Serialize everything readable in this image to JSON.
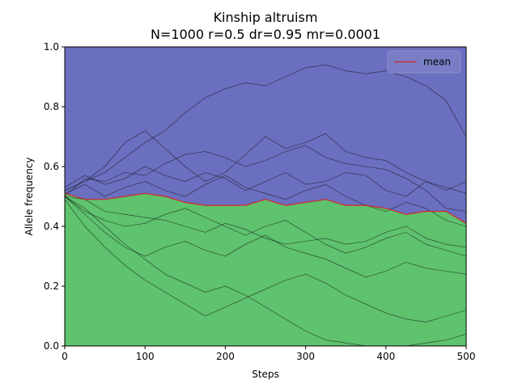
{
  "chart_data": {
    "type": "area",
    "title": "Kinship altruism",
    "subtitle": "N=1000 r=0.5 dr=0.95 mr=0.0001",
    "xlabel": "Steps",
    "ylabel": "Allele frequency",
    "xlim": [
      0,
      500
    ],
    "ylim": [
      0.0,
      1.0
    ],
    "xticks": [
      "0",
      "100",
      "200",
      "300",
      "400",
      "500"
    ],
    "yticks": [
      "0.0",
      "0.2",
      "0.4",
      "0.6",
      "0.8",
      "1.0"
    ],
    "grid": false,
    "legend": {
      "position": "top-right",
      "entries": [
        "mean"
      ]
    },
    "colors": {
      "upper_fill": "#6a6fbf",
      "lower_fill": "#5ec26e",
      "mean_line": "#d62728",
      "runs": "#111111"
    },
    "x": [
      0,
      25,
      50,
      75,
      100,
      125,
      150,
      175,
      200,
      225,
      250,
      275,
      300,
      325,
      350,
      375,
      400,
      425,
      450,
      475,
      500
    ],
    "series": [
      {
        "name": "mean",
        "role": "mean",
        "values": [
          0.51,
          0.49,
          0.49,
          0.5,
          0.51,
          0.5,
          0.48,
          0.47,
          0.47,
          0.47,
          0.49,
          0.47,
          0.48,
          0.49,
          0.47,
          0.47,
          0.46,
          0.44,
          0.45,
          0.45,
          0.41
        ]
      },
      {
        "role": "run",
        "values": [
          0.52,
          0.55,
          0.58,
          0.63,
          0.68,
          0.72,
          0.78,
          0.83,
          0.86,
          0.88,
          0.87,
          0.9,
          0.93,
          0.94,
          0.92,
          0.91,
          0.92,
          0.9,
          0.87,
          0.82,
          0.7
        ]
      },
      {
        "role": "run",
        "values": [
          0.52,
          0.55,
          0.6,
          0.68,
          0.72,
          0.66,
          0.6,
          0.55,
          0.58,
          0.64,
          0.7,
          0.66,
          0.68,
          0.71,
          0.65,
          0.63,
          0.62,
          0.58,
          0.55,
          0.53,
          0.51
        ]
      },
      {
        "role": "run",
        "values": [
          0.5,
          0.56,
          0.55,
          0.58,
          0.57,
          0.61,
          0.64,
          0.65,
          0.63,
          0.6,
          0.62,
          0.65,
          0.67,
          0.63,
          0.61,
          0.6,
          0.59,
          0.56,
          0.52,
          0.46,
          0.45
        ]
      },
      {
        "role": "run",
        "values": [
          0.53,
          0.57,
          0.54,
          0.56,
          0.6,
          0.57,
          0.55,
          0.58,
          0.56,
          0.52,
          0.55,
          0.58,
          0.54,
          0.55,
          0.58,
          0.57,
          0.52,
          0.5,
          0.55,
          0.52,
          0.55
        ]
      },
      {
        "role": "run",
        "values": [
          0.51,
          0.54,
          0.5,
          0.53,
          0.55,
          0.52,
          0.5,
          0.54,
          0.57,
          0.53,
          0.51,
          0.49,
          0.52,
          0.54,
          0.5,
          0.47,
          0.45,
          0.48,
          0.46,
          0.42,
          0.4
        ]
      },
      {
        "role": "run",
        "values": [
          0.5,
          0.49,
          0.45,
          0.44,
          0.43,
          0.42,
          0.4,
          0.38,
          0.41,
          0.39,
          0.36,
          0.34,
          0.35,
          0.36,
          0.34,
          0.35,
          0.38,
          0.4,
          0.36,
          0.34,
          0.33
        ]
      },
      {
        "role": "run",
        "values": [
          0.5,
          0.45,
          0.42,
          0.4,
          0.41,
          0.44,
          0.46,
          0.43,
          0.4,
          0.37,
          0.4,
          0.42,
          0.38,
          0.34,
          0.31,
          0.33,
          0.36,
          0.38,
          0.34,
          0.32,
          0.3
        ]
      },
      {
        "role": "run",
        "values": [
          0.5,
          0.44,
          0.38,
          0.33,
          0.3,
          0.33,
          0.35,
          0.32,
          0.3,
          0.34,
          0.37,
          0.33,
          0.31,
          0.29,
          0.26,
          0.23,
          0.25,
          0.28,
          0.26,
          0.25,
          0.24
        ]
      },
      {
        "role": "run",
        "values": [
          0.49,
          0.4,
          0.33,
          0.27,
          0.22,
          0.18,
          0.14,
          0.1,
          0.13,
          0.16,
          0.19,
          0.22,
          0.24,
          0.21,
          0.17,
          0.14,
          0.11,
          0.09,
          0.08,
          0.1,
          0.12
        ]
      },
      {
        "role": "run",
        "values": [
          0.5,
          0.46,
          0.4,
          0.34,
          0.29,
          0.24,
          0.21,
          0.18,
          0.2,
          0.17,
          0.13,
          0.09,
          0.05,
          0.02,
          0.01,
          0.0,
          0.0,
          0.0,
          0.01,
          0.02,
          0.04
        ]
      }
    ]
  }
}
